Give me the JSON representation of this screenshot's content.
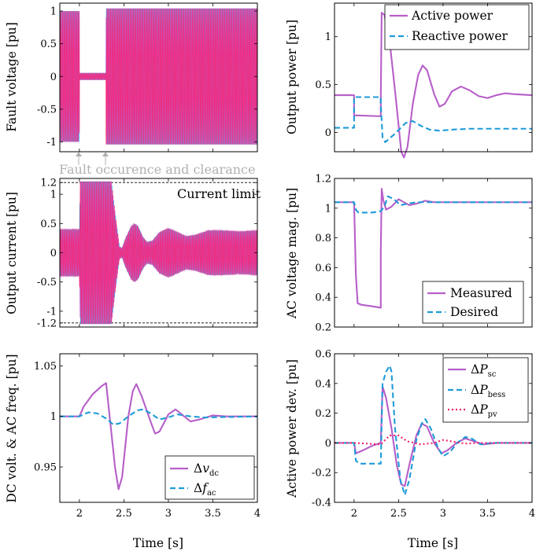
{
  "colors": {
    "active": "#b65fc8",
    "reactive": "#1f9bd8",
    "pv": "#f0206a",
    "phase_a": "#1aa7e6",
    "phase_b": "#c35bd3",
    "phase_c": "#ff1f6e",
    "annotation": "#b0b0b0",
    "limit": "#000000"
  },
  "common": {
    "xlabel": "Time [s]",
    "xticks": [
      "2",
      "2.5",
      "3",
      "3.5",
      "4"
    ],
    "xlim": [
      1.78,
      4.0
    ]
  },
  "annotation": {
    "fault": "Fault occurence and clearance",
    "current_limit": "Current limit"
  },
  "chart_data": [
    {
      "id": "fault-voltage",
      "type": "line",
      "ylabel": "Fault voltage [pu]",
      "ylim": [
        -1.15,
        1.12
      ],
      "yticks": [
        "-1",
        "-0.5",
        "0",
        "0.5",
        "1"
      ],
      "series": [
        {
          "style": "three-phase oscillation",
          "segments": [
            {
              "t0": 1.78,
              "t1": 2.0,
              "amplitude": 1.0
            },
            {
              "t0": 2.0,
              "t1": 2.3,
              "amplitude": 0.05
            },
            {
              "t0": 2.3,
              "t1": 4.0,
              "amplitude": 1.04
            }
          ]
        }
      ]
    },
    {
      "id": "output-power",
      "type": "line",
      "ylabel": "Output power [pu]",
      "ylim": [
        -0.2,
        1.35
      ],
      "yticks": [
        "0",
        "0.5",
        "1"
      ],
      "legend_position": "top-right",
      "series": [
        {
          "name": "Active power",
          "style": "solid",
          "points": [
            [
              1.78,
              0.39
            ],
            [
              2.0,
              0.39
            ],
            [
              2.0,
              0.18
            ],
            [
              2.3,
              0.17
            ],
            [
              2.3,
              0.35
            ],
            [
              2.31,
              1.25
            ],
            [
              2.34,
              1.23
            ],
            [
              2.4,
              0.95
            ],
            [
              2.47,
              0.35
            ],
            [
              2.53,
              -0.2
            ],
            [
              2.56,
              -0.26
            ],
            [
              2.6,
              -0.15
            ],
            [
              2.66,
              0.3
            ],
            [
              2.72,
              0.6
            ],
            [
              2.77,
              0.7
            ],
            [
              2.82,
              0.65
            ],
            [
              2.9,
              0.4
            ],
            [
              2.96,
              0.27
            ],
            [
              3.02,
              0.3
            ],
            [
              3.1,
              0.43
            ],
            [
              3.2,
              0.48
            ],
            [
              3.3,
              0.44
            ],
            [
              3.4,
              0.38
            ],
            [
              3.5,
              0.36
            ],
            [
              3.6,
              0.39
            ],
            [
              3.7,
              0.41
            ],
            [
              3.8,
              0.4
            ],
            [
              4.0,
              0.39
            ]
          ]
        },
        {
          "name": "Reactive power",
          "style": "dashed",
          "points": [
            [
              1.78,
              0.05
            ],
            [
              2.0,
              0.05
            ],
            [
              2.0,
              0.37
            ],
            [
              2.3,
              0.37
            ],
            [
              2.3,
              0.3
            ],
            [
              2.32,
              -0.05
            ],
            [
              2.35,
              -0.1
            ],
            [
              2.45,
              -0.02
            ],
            [
              2.58,
              0.1
            ],
            [
              2.66,
              0.12
            ],
            [
              2.75,
              0.07
            ],
            [
              2.85,
              0.03
            ],
            [
              2.95,
              0.02
            ],
            [
              3.1,
              0.03
            ],
            [
              3.3,
              0.04
            ],
            [
              4.0,
              0.04
            ]
          ]
        }
      ]
    },
    {
      "id": "output-current",
      "type": "line",
      "ylabel": "Output current [pu]",
      "ylim": [
        -1.27,
        1.27
      ],
      "yticks": [
        "-1.2",
        "-1",
        "-0.5",
        "0",
        "0.5",
        "1",
        "1.2"
      ],
      "limit_lines": [
        1.2,
        -1.2
      ],
      "series": [
        {
          "style": "three-phase oscillation",
          "envelope": [
            [
              1.78,
              0.4
            ],
            [
              2.0,
              0.4
            ],
            [
              2.01,
              1.22
            ],
            [
              2.29,
              1.22
            ],
            [
              2.36,
              1.22
            ],
            [
              2.4,
              0.7
            ],
            [
              2.45,
              0.1
            ],
            [
              2.48,
              0.08
            ],
            [
              2.52,
              0.25
            ],
            [
              2.58,
              0.45
            ],
            [
              2.62,
              0.5
            ],
            [
              2.66,
              0.45
            ],
            [
              2.72,
              0.25
            ],
            [
              2.76,
              0.18
            ],
            [
              2.82,
              0.2
            ],
            [
              2.9,
              0.35
            ],
            [
              3.0,
              0.42
            ],
            [
              3.1,
              0.35
            ],
            [
              3.2,
              0.28
            ],
            [
              3.3,
              0.3
            ],
            [
              3.45,
              0.38
            ],
            [
              3.6,
              0.38
            ],
            [
              3.8,
              0.36
            ],
            [
              4.0,
              0.38
            ]
          ]
        }
      ]
    },
    {
      "id": "ac-voltage",
      "type": "line",
      "ylabel": "AC voltage mag. [pu]",
      "ylim": [
        0.2,
        1.2
      ],
      "yticks": [
        "0.2",
        "0.4",
        "0.6",
        "0.8",
        "1",
        "1.2"
      ],
      "legend_position": "bottom-right",
      "series": [
        {
          "name": "Measured",
          "style": "solid",
          "points": [
            [
              1.78,
              1.04
            ],
            [
              2.0,
              1.04
            ],
            [
              2.02,
              0.55
            ],
            [
              2.04,
              0.36
            ],
            [
              2.08,
              0.35
            ],
            [
              2.2,
              0.34
            ],
            [
              2.3,
              0.33
            ],
            [
              2.3,
              0.7
            ],
            [
              2.31,
              1.13
            ],
            [
              2.33,
              1.05
            ],
            [
              2.36,
              0.99
            ],
            [
              2.42,
              1.01
            ],
            [
              2.5,
              1.06
            ],
            [
              2.56,
              1.04
            ],
            [
              2.62,
              1.02
            ],
            [
              2.7,
              1.03
            ],
            [
              2.8,
              1.05
            ],
            [
              2.9,
              1.04
            ],
            [
              4.0,
              1.04
            ]
          ]
        },
        {
          "name": "Desired",
          "style": "dashed",
          "points": [
            [
              1.78,
              1.04
            ],
            [
              2.0,
              1.04
            ],
            [
              2.02,
              0.99
            ],
            [
              2.05,
              0.97
            ],
            [
              2.2,
              0.97
            ],
            [
              2.3,
              0.98
            ],
            [
              2.34,
              1.01
            ],
            [
              2.38,
              1.08
            ],
            [
              2.45,
              1.06
            ],
            [
              2.52,
              1.02
            ],
            [
              2.6,
              1.03
            ],
            [
              2.7,
              1.04
            ],
            [
              4.0,
              1.04
            ]
          ]
        }
      ]
    },
    {
      "id": "dc-ac-freq",
      "type": "line",
      "ylabel": "DC volt. & AC freq. [pu]",
      "ylim": [
        0.915,
        1.062
      ],
      "yticks": [
        "0.95",
        "1",
        "1.05"
      ],
      "legend_position": "bottom-right",
      "series": [
        {
          "name": "Δv_dc",
          "style": "solid",
          "points": [
            [
              1.78,
              1.0
            ],
            [
              2.0,
              1.0
            ],
            [
              2.05,
              1.01
            ],
            [
              2.15,
              1.022
            ],
            [
              2.25,
              1.03
            ],
            [
              2.3,
              1.033
            ],
            [
              2.34,
              1.0
            ],
            [
              2.4,
              0.95
            ],
            [
              2.44,
              0.928
            ],
            [
              2.48,
              0.94
            ],
            [
              2.55,
              1.0
            ],
            [
              2.6,
              1.025
            ],
            [
              2.64,
              1.032
            ],
            [
              2.7,
              1.02
            ],
            [
              2.8,
              0.995
            ],
            [
              2.85,
              0.983
            ],
            [
              2.9,
              0.985
            ],
            [
              3.0,
              1.002
            ],
            [
              3.08,
              1.007
            ],
            [
              3.15,
              1.002
            ],
            [
              3.25,
              0.995
            ],
            [
              3.35,
              0.997
            ],
            [
              3.5,
              1.001
            ],
            [
              3.65,
              1.0
            ],
            [
              4.0,
              1.0
            ]
          ]
        },
        {
          "name": "Δf_ac",
          "style": "dashed",
          "points": [
            [
              1.78,
              1.0
            ],
            [
              2.0,
              1.0
            ],
            [
              2.1,
              1.004
            ],
            [
              2.2,
              1.003
            ],
            [
              2.3,
              0.998
            ],
            [
              2.38,
              0.992
            ],
            [
              2.45,
              0.993
            ],
            [
              2.55,
              1.0
            ],
            [
              2.65,
              1.006
            ],
            [
              2.72,
              1.007
            ],
            [
              2.8,
              1.003
            ],
            [
              2.9,
              0.997
            ],
            [
              3.0,
              0.999
            ],
            [
              3.1,
              1.002
            ],
            [
              3.25,
              1.0
            ],
            [
              3.4,
              0.999
            ],
            [
              4.0,
              1.0
            ]
          ]
        }
      ]
    },
    {
      "id": "active-power-dev",
      "type": "line",
      "ylabel": "Active power dev. [pu]",
      "ylim": [
        -0.4,
        0.6
      ],
      "yticks": [
        "-0.4",
        "-0.2",
        "0",
        "0.2",
        "0.4",
        "0.6"
      ],
      "legend_position": "top-right",
      "series": [
        {
          "name": "ΔP_sc",
          "style": "solid",
          "points": [
            [
              1.78,
              0.0
            ],
            [
              2.0,
              0.0
            ],
            [
              2.02,
              -0.07
            ],
            [
              2.1,
              -0.05
            ],
            [
              2.2,
              -0.02
            ],
            [
              2.3,
              0.0
            ],
            [
              2.32,
              0.38
            ],
            [
              2.36,
              0.3
            ],
            [
              2.42,
              0.1
            ],
            [
              2.48,
              -0.15
            ],
            [
              2.53,
              -0.28
            ],
            [
              2.57,
              -0.29
            ],
            [
              2.62,
              -0.15
            ],
            [
              2.7,
              0.05
            ],
            [
              2.76,
              0.13
            ],
            [
              2.82,
              0.11
            ],
            [
              2.9,
              0.0
            ],
            [
              2.98,
              -0.07
            ],
            [
              3.05,
              -0.05
            ],
            [
              3.15,
              0.0
            ],
            [
              3.25,
              0.03
            ],
            [
              3.35,
              0.01
            ],
            [
              3.45,
              -0.01
            ],
            [
              3.6,
              0.0
            ],
            [
              4.0,
              0.0
            ]
          ]
        },
        {
          "name": "ΔP_bess",
          "style": "dashed",
          "points": [
            [
              1.78,
              0.0
            ],
            [
              2.0,
              0.0
            ],
            [
              2.02,
              -0.12
            ],
            [
              2.06,
              -0.14
            ],
            [
              2.2,
              -0.14
            ],
            [
              2.3,
              -0.14
            ],
            [
              2.32,
              0.4
            ],
            [
              2.36,
              0.48
            ],
            [
              2.4,
              0.52
            ],
            [
              2.42,
              0.48
            ],
            [
              2.46,
              0.1
            ],
            [
              2.52,
              -0.25
            ],
            [
              2.57,
              -0.35
            ],
            [
              2.62,
              -0.25
            ],
            [
              2.7,
              0.02
            ],
            [
              2.76,
              0.13
            ],
            [
              2.8,
              0.16
            ],
            [
              2.86,
              0.1
            ],
            [
              2.94,
              -0.03
            ],
            [
              3.0,
              -0.09
            ],
            [
              3.08,
              -0.06
            ],
            [
              3.16,
              0.0
            ],
            [
              3.25,
              0.04
            ],
            [
              3.32,
              0.03
            ],
            [
              3.42,
              -0.01
            ],
            [
              3.55,
              0.0
            ],
            [
              4.0,
              0.0
            ]
          ]
        },
        {
          "name": "ΔP_pv",
          "style": "dotted",
          "points": [
            [
              1.78,
              0.0
            ],
            [
              2.0,
              0.0
            ],
            [
              2.3,
              -0.01
            ],
            [
              2.4,
              0.05
            ],
            [
              2.5,
              0.05
            ],
            [
              2.6,
              0.01
            ],
            [
              2.75,
              -0.01
            ],
            [
              2.9,
              0.0
            ],
            [
              3.0,
              0.02
            ],
            [
              3.1,
              0.01
            ],
            [
              3.25,
              -0.005
            ],
            [
              3.4,
              0.0
            ],
            [
              4.0,
              0.0
            ]
          ]
        }
      ]
    }
  ]
}
